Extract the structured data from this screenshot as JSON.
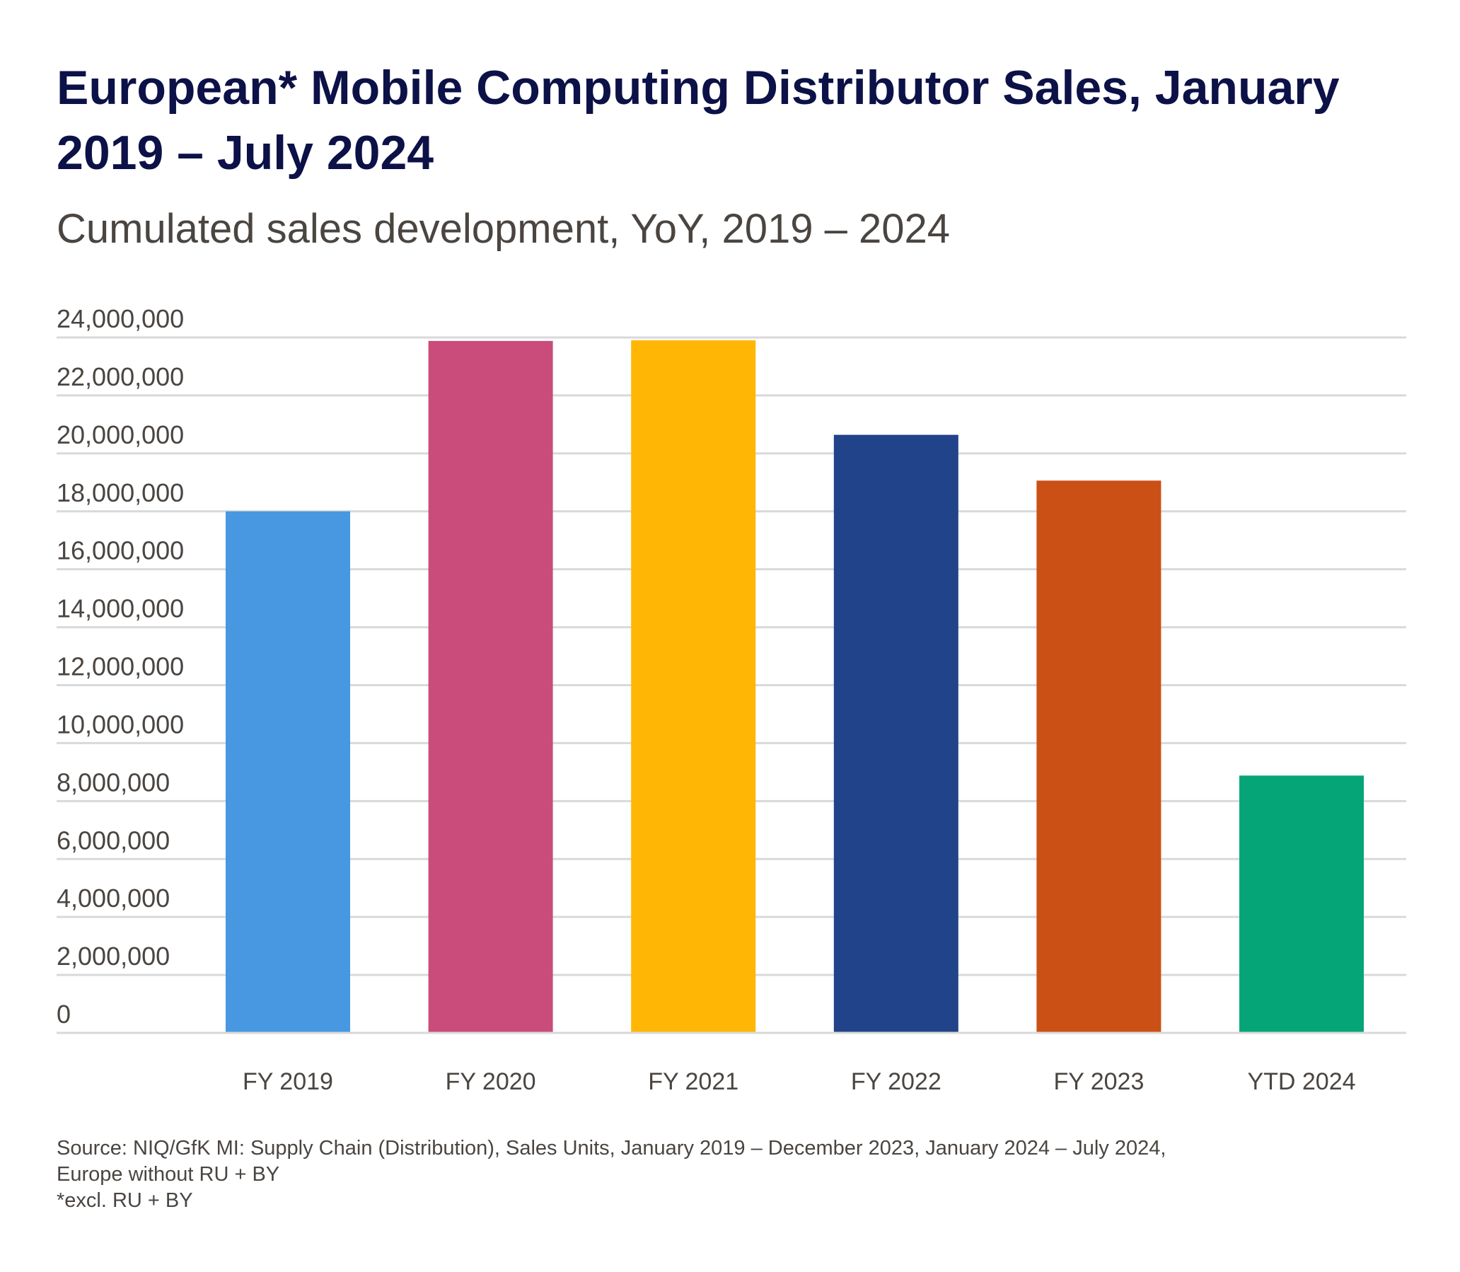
{
  "header": {
    "title": "European* Mobile Computing Distributor Sales, January 2019 –  July 2024",
    "subtitle": "Cumulated sales development, YoY, 2019 – 2024"
  },
  "chart_data": {
    "type": "bar",
    "title": "European* Mobile Computing Distributor Sales, January 2019 –  July 2024",
    "subtitle": "Cumulated sales development, YoY, 2019 – 2024",
    "categories": [
      "FY 2019",
      "FY 2020",
      "FY 2021",
      "FY 2022",
      "FY 2023",
      "YTD 2024"
    ],
    "values": [
      18000000,
      23880000,
      23900000,
      20640000,
      19060000,
      8880000
    ],
    "colors": [
      "#4798e1",
      "#ca4c7a",
      "#ffb604",
      "#214389",
      "#cb5015",
      "#05a577"
    ],
    "ylim": [
      0,
      24000000
    ],
    "yticks": [
      "0",
      "2,000,000",
      "4,000,000",
      "6,000,000",
      "8,000,000",
      "10,000,000",
      "12,000,000",
      "14,000,000",
      "16,000,000",
      "18,000,000",
      "20,000,000",
      "22,000,000",
      "24,000,000"
    ],
    "ytick_values": [
      0,
      2000000,
      4000000,
      6000000,
      8000000,
      10000000,
      12000000,
      14000000,
      16000000,
      18000000,
      20000000,
      22000000,
      24000000
    ],
    "xlabel": "",
    "ylabel": "",
    "grid": true,
    "legend": "none"
  },
  "footer": {
    "source": "Source: NIQ/GfK MI: Supply Chain (Distribution), Sales Units, January 2019 – December 2023, January 2024 – July 2024,",
    "source_line2": "Europe without RU + BY",
    "note": "*excl. RU + BY"
  }
}
